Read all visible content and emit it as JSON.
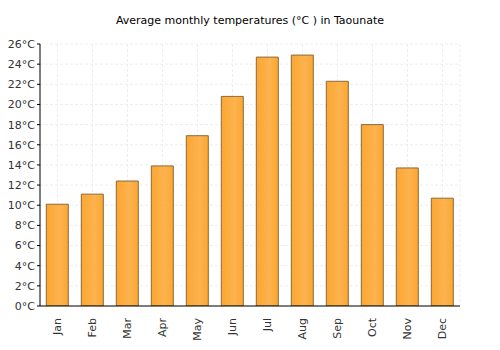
{
  "chart_data": {
    "type": "bar",
    "title": "Average monthly temperatures (°C ) in Taounate",
    "categories": [
      "Jan",
      "Feb",
      "Mar",
      "Apr",
      "May",
      "Jun",
      "Jul",
      "Aug",
      "Sep",
      "Oct",
      "Nov",
      "Dec"
    ],
    "values": [
      10.1,
      11.1,
      12.4,
      13.9,
      16.9,
      20.8,
      24.7,
      24.9,
      22.3,
      18.0,
      13.7,
      10.7
    ],
    "color": "#fca630",
    "ylim": [
      0,
      26
    ],
    "yticks": [
      {
        "value": 0,
        "label": "0°C"
      },
      {
        "value": 2,
        "label": "2°C"
      },
      {
        "value": 4,
        "label": "4°C"
      },
      {
        "value": 6,
        "label": "6°C"
      },
      {
        "value": 8,
        "label": "8°C"
      },
      {
        "value": 10,
        "label": "10°C"
      },
      {
        "value": 12,
        "label": "12°C"
      },
      {
        "value": 14,
        "label": "14°C"
      },
      {
        "value": 16,
        "label": "16°C"
      },
      {
        "value": 18,
        "label": "18°C"
      },
      {
        "value": 20,
        "label": "20°C"
      },
      {
        "value": 22,
        "label": "22°C"
      },
      {
        "value": 24,
        "label": "24°C"
      },
      {
        "value": 26,
        "label": "26°C"
      }
    ],
    "grid": true
  }
}
